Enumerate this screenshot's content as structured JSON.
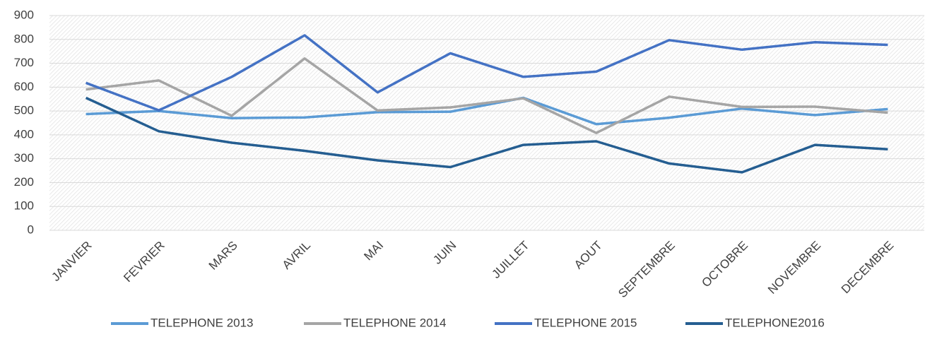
{
  "chart_data": {
    "type": "line",
    "categories": [
      "JANVIER",
      "FEVRIER",
      "MARS",
      "AVRIL",
      "MAI",
      "JUIN",
      "JUILLET",
      "AOUT",
      "SEPTEMBRE",
      "OCTOBRE",
      "NOVEMBRE",
      "DECEMBRE"
    ],
    "series": [
      {
        "name": "TELEPHONE 2013",
        "color": "#5b9bd5",
        "values": [
          487,
          500,
          470,
          473,
          495,
          497,
          555,
          445,
          472,
          510,
          483,
          508
        ]
      },
      {
        "name": "TELEPHONE 2014",
        "color": "#a5a5a5",
        "values": [
          590,
          628,
          480,
          720,
          502,
          515,
          553,
          408,
          560,
          517,
          518,
          493
        ]
      },
      {
        "name": "TELEPHONE 2015",
        "color": "#4472c4",
        "values": [
          618,
          503,
          643,
          817,
          578,
          742,
          643,
          665,
          797,
          757,
          788,
          777
        ]
      },
      {
        "name": "TELEPHONE2016",
        "color": "#255e91",
        "values": [
          555,
          415,
          367,
          333,
          293,
          265,
          358,
          373,
          280,
          243,
          358,
          340
        ]
      }
    ],
    "ylim": [
      0,
      900
    ],
    "yticks": [
      0,
      100,
      200,
      300,
      400,
      500,
      600,
      700,
      800,
      900
    ],
    "grid": true,
    "legend": "bottom"
  }
}
